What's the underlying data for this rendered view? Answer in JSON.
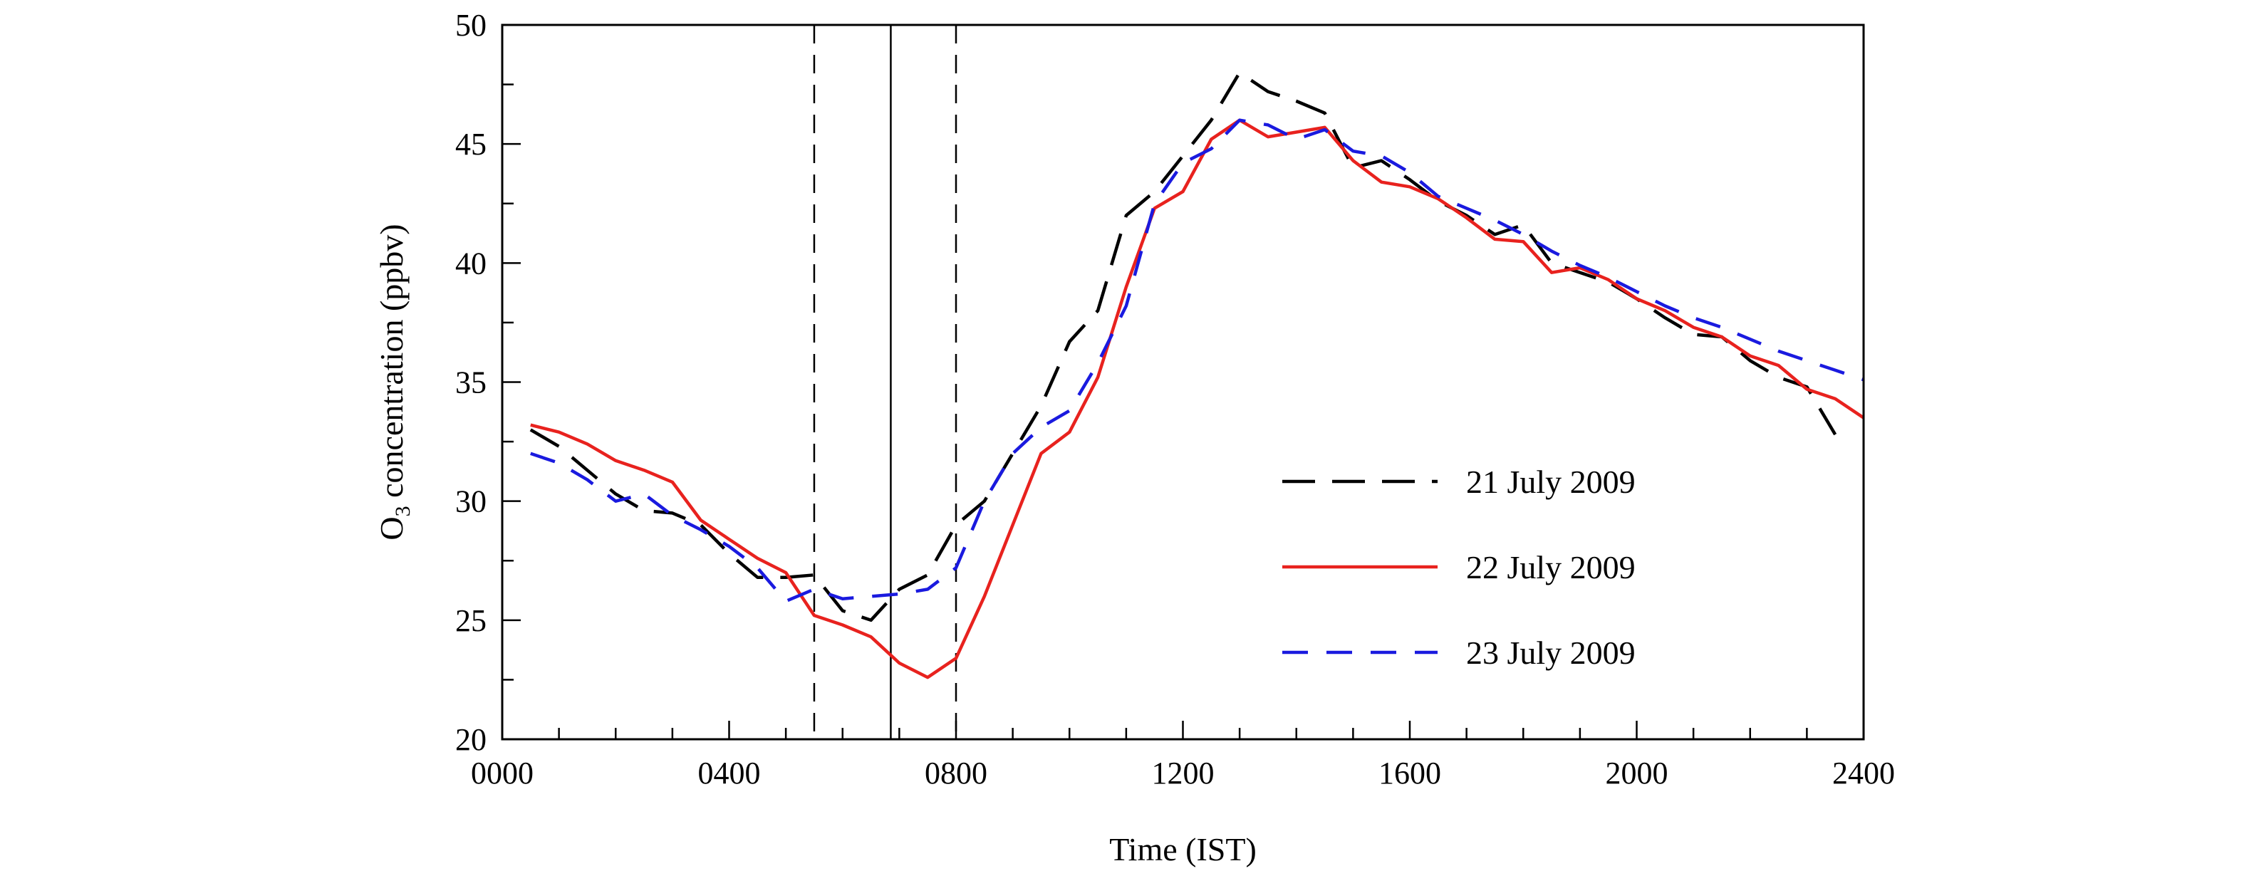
{
  "chart_data": {
    "type": "line",
    "title": "",
    "xlabel": "Time (IST)",
    "ylabel": {
      "prefix": "O",
      "subscript": "3",
      "suffix": " concentration (ppbv)"
    },
    "xlim": [
      0,
      24
    ],
    "ylim": [
      20,
      50
    ],
    "x_tick_labels": [
      "0000",
      "0400",
      "0800",
      "1200",
      "1600",
      "2000",
      "2400"
    ],
    "y_tick_labels": [
      "20",
      "25",
      "30",
      "35",
      "40",
      "45",
      "50"
    ],
    "legend_position": "lower-right",
    "vertical_markers": [
      {
        "x": 5.5,
        "style": "dashed"
      },
      {
        "x": 6.85,
        "style": "solid"
      },
      {
        "x": 8.0,
        "style": "dashed"
      }
    ],
    "series": [
      {
        "name": "21 July 2009",
        "color": "#000000",
        "style": "long-dash",
        "points": [
          [
            0.5,
            33
          ],
          [
            1,
            32.3
          ],
          [
            1.5,
            31.3
          ],
          [
            2,
            30.3
          ],
          [
            2.5,
            29.6
          ],
          [
            3,
            29.5
          ],
          [
            3.5,
            29
          ],
          [
            4,
            27.8
          ],
          [
            4.5,
            26.8
          ],
          [
            5,
            26.8
          ],
          [
            5.5,
            26.9
          ],
          [
            6,
            25.4
          ],
          [
            6.5,
            25
          ],
          [
            7,
            26.3
          ],
          [
            7.5,
            26.9
          ],
          [
            8,
            29
          ],
          [
            8.5,
            30
          ],
          [
            9,
            32
          ],
          [
            9.5,
            34
          ],
          [
            10,
            36.7
          ],
          [
            10.5,
            38
          ],
          [
            11,
            42
          ],
          [
            11.5,
            43
          ],
          [
            12,
            44.5
          ],
          [
            12.5,
            46
          ],
          [
            13,
            48
          ],
          [
            13.5,
            47.2
          ],
          [
            14,
            46.8
          ],
          [
            14.5,
            46.3
          ],
          [
            15,
            44
          ],
          [
            15.5,
            44.3
          ],
          [
            16,
            43.5
          ],
          [
            16.5,
            42.6
          ],
          [
            17,
            42
          ],
          [
            17.5,
            41.2
          ],
          [
            18,
            41.6
          ],
          [
            18.5,
            40
          ],
          [
            19,
            39.6
          ],
          [
            19.5,
            39.2
          ],
          [
            20,
            38.5
          ],
          [
            20.5,
            37.7
          ],
          [
            21,
            37
          ],
          [
            21.5,
            36.9
          ],
          [
            22,
            35.9
          ],
          [
            22.5,
            35.2
          ],
          [
            23,
            34.8
          ],
          [
            23.5,
            32.8
          ]
        ]
      },
      {
        "name": "22 July 2009",
        "color": "#e8221e",
        "style": "solid",
        "points": [
          [
            0.5,
            33.2
          ],
          [
            1,
            32.9
          ],
          [
            1.5,
            32.4
          ],
          [
            2,
            31.7
          ],
          [
            2.5,
            31.3
          ],
          [
            3,
            30.8
          ],
          [
            3.5,
            29.2
          ],
          [
            4,
            28.4
          ],
          [
            4.5,
            27.6
          ],
          [
            5,
            27
          ],
          [
            5.5,
            25.2
          ],
          [
            6,
            24.8
          ],
          [
            6.5,
            24.3
          ],
          [
            7,
            23.2
          ],
          [
            7.5,
            22.6
          ],
          [
            8,
            23.4
          ],
          [
            8.5,
            26
          ],
          [
            9,
            29
          ],
          [
            9.5,
            32
          ],
          [
            10,
            32.9
          ],
          [
            10.5,
            35.2
          ],
          [
            11,
            39
          ],
          [
            11.5,
            42.3
          ],
          [
            12,
            43
          ],
          [
            12.5,
            45.2
          ],
          [
            13,
            46
          ],
          [
            13.5,
            45.3
          ],
          [
            14,
            45.5
          ],
          [
            14.5,
            45.7
          ],
          [
            15,
            44.3
          ],
          [
            15.5,
            43.4
          ],
          [
            16,
            43.2
          ],
          [
            16.5,
            42.7
          ],
          [
            17,
            41.9
          ],
          [
            17.5,
            41
          ],
          [
            18,
            40.9
          ],
          [
            18.5,
            39.6
          ],
          [
            19,
            39.8
          ],
          [
            19.5,
            39.3
          ],
          [
            20,
            38.5
          ],
          [
            20.5,
            38
          ],
          [
            21,
            37.3
          ],
          [
            21.5,
            36.9
          ],
          [
            22,
            36.1
          ],
          [
            22.5,
            35.7
          ],
          [
            23,
            34.7
          ],
          [
            23.5,
            34.3
          ],
          [
            24,
            33.5
          ]
        ]
      },
      {
        "name": "23 July 2009",
        "color": "#1a1adf",
        "style": "dash",
        "points": [
          [
            0.5,
            32
          ],
          [
            1,
            31.6
          ],
          [
            1.5,
            30.9
          ],
          [
            2,
            30
          ],
          [
            2.5,
            30.3
          ],
          [
            3,
            29.4
          ],
          [
            3.5,
            28.8
          ],
          [
            4,
            28.1
          ],
          [
            4.5,
            27.2
          ],
          [
            5,
            25.8
          ],
          [
            5.5,
            26.3
          ],
          [
            6,
            25.9
          ],
          [
            6.5,
            26
          ],
          [
            7,
            26.1
          ],
          [
            7.5,
            26.3
          ],
          [
            8,
            27.2
          ],
          [
            8.5,
            30
          ],
          [
            9,
            32
          ],
          [
            9.5,
            33.1
          ],
          [
            10,
            33.8
          ],
          [
            10.5,
            35.8
          ],
          [
            11,
            38.2
          ],
          [
            11.5,
            42.5
          ],
          [
            12,
            44.2
          ],
          [
            12.5,
            44.8
          ],
          [
            13,
            46
          ],
          [
            13.5,
            45.8
          ],
          [
            14,
            45.2
          ],
          [
            14.5,
            45.6
          ],
          [
            15,
            44.7
          ],
          [
            15.5,
            44.5
          ],
          [
            16,
            43.8
          ],
          [
            16.5,
            42.8
          ],
          [
            17,
            42.3
          ],
          [
            17.5,
            41.8
          ],
          [
            18,
            41.2
          ],
          [
            18.5,
            40.5
          ],
          [
            19,
            39.9
          ],
          [
            19.5,
            39.4
          ],
          [
            20,
            38.8
          ],
          [
            20.5,
            38.2
          ],
          [
            21,
            37.7
          ],
          [
            21.5,
            37.3
          ],
          [
            22,
            36.8
          ],
          [
            22.5,
            36.3
          ],
          [
            23,
            35.9
          ],
          [
            23.5,
            35.5
          ],
          [
            24,
            35.1
          ]
        ]
      }
    ]
  }
}
